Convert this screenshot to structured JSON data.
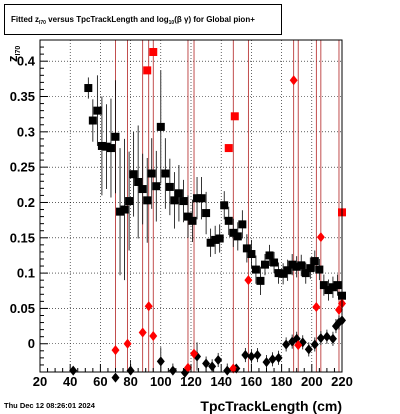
{
  "legend": {
    "part1": "Fitted z",
    "sub1": "I70",
    "part2": " versus TpcTrackLength and log",
    "sub2": "10",
    "part3": "(β γ) for Global pion+"
  },
  "footer_date": "Thu Dec 12 08:26:01 2024",
  "colors": {
    "black_series": "#000000",
    "red_series": "#ff0000",
    "red_lines": "#b22222"
  },
  "chart_data": {
    "type": "scatter",
    "xlabel": "TpcTrackLength (cm)",
    "ylabel": "z_I70",
    "ylabel_main": "z",
    "ylabel_sub": "I70",
    "xlim": [
      20,
      220
    ],
    "ylim": [
      -0.04,
      0.43
    ],
    "xticks": [
      20,
      40,
      60,
      80,
      100,
      120,
      140,
      160,
      180,
      200,
      220
    ],
    "xtick_labels": [
      "20",
      "40",
      "60",
      "80",
      "100",
      "120",
      "140",
      "160",
      "180",
      "200",
      "220"
    ],
    "yticks": [
      0,
      0.05,
      0.1,
      0.15,
      0.2,
      0.25,
      0.3,
      0.35,
      0.4
    ],
    "ytick_labels": [
      "0",
      "0.05",
      "0.1",
      "0.15",
      "0.2",
      "0.25",
      "0.3",
      "0.35",
      "0.4"
    ],
    "grid": true,
    "series": [
      {
        "marker": "square",
        "color": "#000000",
        "points": [
          [
            52,
            0.362,
            0.015
          ],
          [
            55,
            0.316,
            0.03
          ],
          [
            58,
            0.33,
            0.05
          ],
          [
            61,
            0.28,
            0.07
          ],
          [
            64,
            0.279,
            0.06
          ],
          [
            67,
            0.277,
            0.07
          ],
          [
            70,
            0.293,
            0.08
          ],
          [
            73,
            0.187,
            0.09
          ],
          [
            76,
            0.19,
            0.1
          ],
          [
            79,
            0.202,
            0.07
          ],
          [
            82,
            0.24,
            0.06
          ],
          [
            85,
            0.229,
            0.08
          ],
          [
            88,
            0.219,
            0.05
          ],
          [
            91,
            0.203,
            0.06
          ],
          [
            94,
            0.241,
            0.05
          ],
          [
            97,
            0.223,
            0.05
          ],
          [
            100,
            0.307,
            0.08
          ],
          [
            103,
            0.241,
            0.05
          ],
          [
            106,
            0.222,
            0.04
          ],
          [
            109,
            0.203,
            0.04
          ],
          [
            112,
            0.213,
            0.04
          ],
          [
            115,
            0.202,
            0.03
          ],
          [
            118,
            0.18,
            0.03
          ],
          [
            121,
            0.174,
            0.03
          ],
          [
            124,
            0.206,
            0.03
          ],
          [
            127,
            0.206,
            0.03
          ],
          [
            130,
            0.185,
            0.03
          ],
          [
            133,
            0.143,
            0.02
          ],
          [
            136,
            0.147,
            0.02
          ],
          [
            139,
            0.149,
            0.02
          ],
          [
            142,
            0.196,
            0.02
          ],
          [
            145,
            0.174,
            0.02
          ],
          [
            148,
            0.157,
            0.02
          ],
          [
            151,
            0.152,
            0.02
          ],
          [
            154,
            0.169,
            0.02
          ],
          [
            157,
            0.135,
            0.02
          ],
          [
            160,
            0.127,
            0.02
          ],
          [
            163,
            0.105,
            0.02
          ],
          [
            166,
            0.089,
            0.02
          ],
          [
            169,
            0.112,
            0.015
          ],
          [
            172,
            0.125,
            0.015
          ],
          [
            175,
            0.115,
            0.015
          ],
          [
            178,
            0.1,
            0.015
          ],
          [
            181,
            0.099,
            0.015
          ],
          [
            184,
            0.104,
            0.015
          ],
          [
            187,
            0.112,
            0.015
          ],
          [
            190,
            0.109,
            0.015
          ],
          [
            193,
            0.111,
            0.015
          ],
          [
            196,
            0.1,
            0.015
          ],
          [
            199,
            0.107,
            0.015
          ],
          [
            202,
            0.117,
            0.015
          ],
          [
            205,
            0.105,
            0.015
          ],
          [
            208,
            0.083,
            0.015
          ],
          [
            211,
            0.076,
            0.015
          ],
          [
            214,
            0.08,
            0.015
          ],
          [
            217,
            0.083,
            0.015
          ],
          [
            220,
            0.068,
            0.015
          ]
        ]
      },
      {
        "marker": "diamond",
        "color": "#000000",
        "points": [
          [
            42,
            -0.038,
            0.005
          ],
          [
            70,
            -0.048,
            0.01
          ],
          [
            80,
            -0.038,
            0.015
          ],
          [
            100,
            -0.025,
            0.02
          ],
          [
            108,
            -0.038,
            0.01
          ],
          [
            116,
            -0.041,
            0.005
          ],
          [
            124,
            -0.018,
            0.02
          ],
          [
            130,
            -0.028,
            0.01
          ],
          [
            134,
            -0.032,
            0.01
          ],
          [
            138,
            -0.023,
            0.01
          ],
          [
            144,
            -0.038,
            0.01
          ],
          [
            150,
            -0.035,
            0.005
          ],
          [
            156,
            -0.016,
            0.01
          ],
          [
            160,
            -0.018,
            0.01
          ],
          [
            164,
            -0.016,
            0.01
          ],
          [
            170,
            -0.026,
            0.01
          ],
          [
            174,
            -0.022,
            0.01
          ],
          [
            178,
            -0.02,
            0.01
          ],
          [
            183,
            -0.001,
            0.01
          ],
          [
            187,
            0.003,
            0.01
          ],
          [
            190,
            0.007,
            0.01
          ],
          [
            194,
            0.002,
            0.01
          ],
          [
            198,
            -0.008,
            0.01
          ],
          [
            202,
            -0.001,
            0.01
          ],
          [
            206,
            0.008,
            0.01
          ],
          [
            210,
            0.01,
            0.01
          ],
          [
            214,
            0.007,
            0.01
          ],
          [
            216,
            0.025,
            0.01
          ],
          [
            218,
            0.03,
            0.01
          ],
          [
            220,
            0.033,
            0.01
          ]
        ]
      },
      {
        "marker": "square",
        "color": "#ff0000",
        "points": [
          [
            91,
            0.387
          ],
          [
            95,
            0.413
          ],
          [
            145,
            0.277
          ],
          [
            149,
            0.322
          ],
          [
            220,
            0.186
          ]
        ]
      },
      {
        "marker": "diamond",
        "color": "#ff0000",
        "points": [
          [
            70,
            -0.009
          ],
          [
            78,
            0.0
          ],
          [
            88,
            0.016
          ],
          [
            92,
            0.053
          ],
          [
            95,
            0.011
          ],
          [
            118,
            -0.034
          ],
          [
            122,
            -0.014
          ],
          [
            148,
            -0.035
          ],
          [
            158,
            0.09
          ],
          [
            188,
            0.373
          ],
          [
            191,
            -0.002
          ],
          [
            203,
            0.052
          ],
          [
            206,
            0.151
          ],
          [
            218,
            0.048
          ],
          [
            220,
            0.057
          ]
        ]
      }
    ],
    "vertical_lines_x": [
      70,
      78,
      88,
      92,
      95,
      118,
      122,
      148,
      158,
      188,
      191,
      203,
      206,
      218
    ]
  }
}
